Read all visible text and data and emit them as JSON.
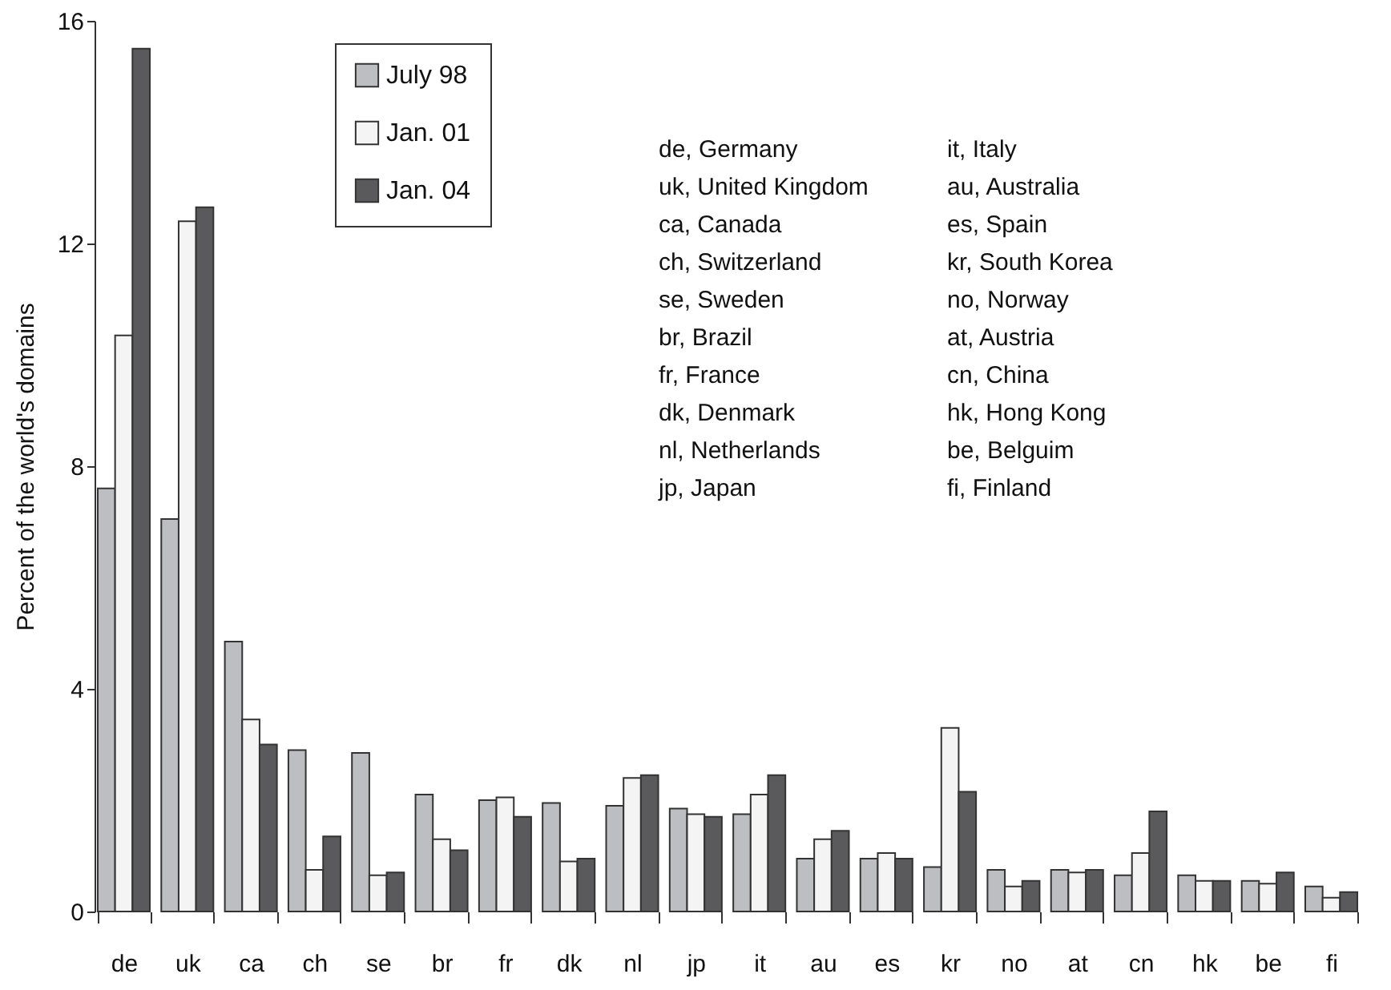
{
  "chart_data": {
    "type": "bar",
    "ylabel": "Percent of the world's domains",
    "categories": [
      "de",
      "uk",
      "ca",
      "ch",
      "se",
      "br",
      "fr",
      "dk",
      "nl",
      "jp",
      "it",
      "au",
      "es",
      "kr",
      "no",
      "at",
      "cn",
      "hk",
      "be",
      "fi"
    ],
    "series": [
      {
        "name": "July 98",
        "color": "#bdbec2",
        "values": [
          7.6,
          7.05,
          4.85,
          2.9,
          2.85,
          2.1,
          2.0,
          1.95,
          1.9,
          1.85,
          1.75,
          0.95,
          0.95,
          0.8,
          0.75,
          0.75,
          0.65,
          0.65,
          0.55,
          0.45
        ]
      },
      {
        "name": "Jan. 01",
        "color": "#f4f4f4",
        "values": [
          10.35,
          12.4,
          3.45,
          0.75,
          0.65,
          1.3,
          2.05,
          0.9,
          2.4,
          1.75,
          2.1,
          1.3,
          1.05,
          3.3,
          0.45,
          0.7,
          1.05,
          0.55,
          0.5,
          0.25
        ]
      },
      {
        "name": "Jan. 04",
        "color": "#5a5a5c",
        "values": [
          15.5,
          12.65,
          3.0,
          1.35,
          0.7,
          1.1,
          1.7,
          0.95,
          2.45,
          1.7,
          2.45,
          1.45,
          0.95,
          2.15,
          0.55,
          0.75,
          1.8,
          0.55,
          0.7,
          0.35
        ]
      }
    ],
    "ylim": [
      0,
      16
    ],
    "yticks": [
      0,
      4,
      8,
      12,
      16
    ],
    "grid": false,
    "legend": "top left",
    "annotations": [
      "de, Germany",
      "uk, United Kingdom",
      "ca, Canada",
      "ch, Switzerland",
      "se, Sweden",
      "br, Brazil",
      "fr, France",
      "dk, Denmark",
      "nl, Netherlands",
      "jp, Japan",
      "it, Italy",
      "au, Australia",
      "es, Spain",
      "kr, South Korea",
      "no, Norway",
      "at, Austria",
      "cn, China",
      "hk, Hong Kong",
      "be, Belguim",
      "fi, Finland"
    ]
  }
}
